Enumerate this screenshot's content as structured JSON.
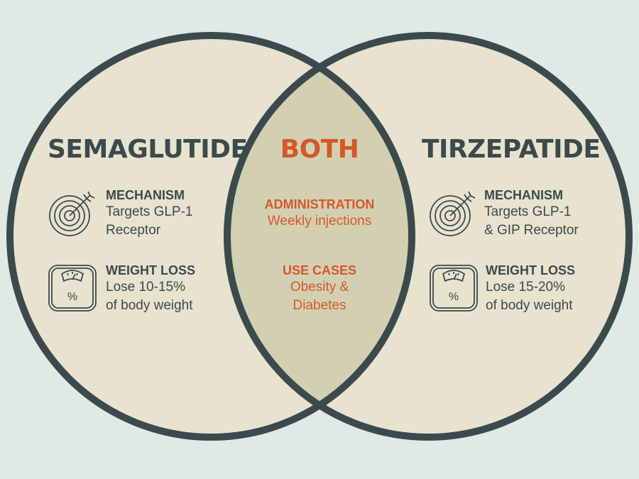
{
  "left": {
    "title": "SEMAGLUTIDE",
    "mechanism": {
      "label": "MECHANISM",
      "line1": "Targets GLP-1",
      "line2": "Receptor",
      "icon": "target-arrow-icon"
    },
    "weight_loss": {
      "label": "WEIGHT LOSS",
      "line1": "Lose 10-15%",
      "line2": "of body weight",
      "icon": "scale-icon"
    }
  },
  "center": {
    "title": "BOTH",
    "administration": {
      "label": "ADMINISTRATION",
      "line1": "Weekly injections"
    },
    "use_cases": {
      "label": "USE CASES",
      "line1": "Obesity &",
      "line2": "Diabetes"
    }
  },
  "right": {
    "title": "TIRZEPATIDE",
    "mechanism": {
      "label": "MECHANISM",
      "line1": "Targets GLP-1",
      "line2": "& GIP Receptor",
      "icon": "target-arrow-icon"
    },
    "weight_loss": {
      "label": "WEIGHT LOSS",
      "line1": "Lose 15-20%",
      "line2": "of body weight",
      "icon": "scale-icon"
    }
  },
  "scale_symbol": "%",
  "colors": {
    "background": "#e1e9e5",
    "circle_fill": "#e8e3cf",
    "overlap_fill": "#d3d0b2",
    "outline": "#3b4a4c",
    "accent": "#d4582a"
  }
}
